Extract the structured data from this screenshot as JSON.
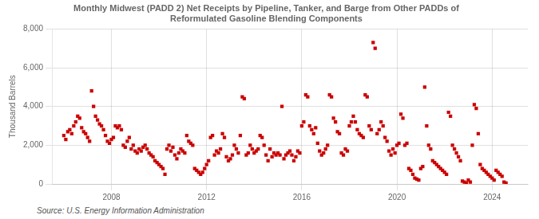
{
  "chart_data": {
    "type": "scatter",
    "title": "Monthly Midwest (PADD 2) Net Receipts by Pipeline, Tanker, and Barge from Other PADDs of\nReformulated Gasoline Blending Components",
    "ylabel": "Thousand Barrels",
    "annotations": [
      "Source: U.S. Energy Information Administration"
    ],
    "color": "#cc0000",
    "marker": "square",
    "grid": true,
    "xlim": [
      2005.5,
      2025.5
    ],
    "xticks": [
      2008,
      2012,
      2016,
      2020,
      2024
    ],
    "ylim": [
      0,
      8000
    ],
    "yticks": [
      0,
      {
        "value": 2000,
        "label": "2,000"
      },
      {
        "value": 4000,
        "label": "4,000"
      },
      {
        "value": 6000,
        "label": "6,000"
      },
      {
        "value": 8000,
        "label": "8,000"
      }
    ],
    "x": [
      2006.0,
      2006.083,
      2006.167,
      2006.25,
      2006.333,
      2006.417,
      2006.5,
      2006.583,
      2006.667,
      2006.75,
      2006.833,
      2006.917,
      2007.0,
      2007.083,
      2007.167,
      2007.25,
      2007.333,
      2007.417,
      2007.5,
      2007.583,
      2007.667,
      2007.75,
      2007.833,
      2007.917,
      2008.0,
      2008.083,
      2008.167,
      2008.25,
      2008.333,
      2008.417,
      2008.5,
      2008.583,
      2008.667,
      2008.75,
      2008.833,
      2008.917,
      2009.0,
      2009.083,
      2009.167,
      2009.25,
      2009.333,
      2009.417,
      2009.5,
      2009.583,
      2009.667,
      2009.75,
      2009.833,
      2009.917,
      2010.0,
      2010.083,
      2010.167,
      2010.25,
      2010.333,
      2010.417,
      2010.5,
      2010.583,
      2010.667,
      2010.75,
      2010.833,
      2010.917,
      2011.0,
      2011.083,
      2011.167,
      2011.25,
      2011.333,
      2011.417,
      2011.5,
      2011.583,
      2011.667,
      2011.75,
      2011.833,
      2011.917,
      2012.0,
      2012.083,
      2012.167,
      2012.25,
      2012.333,
      2012.417,
      2012.5,
      2012.583,
      2012.667,
      2012.75,
      2012.833,
      2012.917,
      2013.0,
      2013.083,
      2013.167,
      2013.25,
      2013.333,
      2013.417,
      2013.5,
      2013.583,
      2013.667,
      2013.75,
      2013.833,
      2013.917,
      2014.0,
      2014.083,
      2014.167,
      2014.25,
      2014.333,
      2014.417,
      2014.5,
      2014.583,
      2014.667,
      2014.75,
      2014.833,
      2014.917,
      2015.0,
      2015.083,
      2015.167,
      2015.25,
      2015.333,
      2015.417,
      2015.5,
      2015.583,
      2015.667,
      2015.75,
      2015.833,
      2015.917,
      2016.0,
      2016.083,
      2016.167,
      2016.25,
      2016.333,
      2016.417,
      2016.5,
      2016.583,
      2016.667,
      2016.75,
      2016.833,
      2016.917,
      2017.0,
      2017.083,
      2017.167,
      2017.25,
      2017.333,
      2017.417,
      2017.5,
      2017.583,
      2017.667,
      2017.75,
      2017.833,
      2017.917,
      2018.0,
      2018.083,
      2018.167,
      2018.25,
      2018.333,
      2018.417,
      2018.5,
      2018.583,
      2018.667,
      2018.75,
      2018.833,
      2018.917,
      2019.0,
      2019.083,
      2019.167,
      2019.25,
      2019.333,
      2019.417,
      2019.5,
      2019.583,
      2019.667,
      2019.75,
      2019.833,
      2019.917,
      2020.0,
      2020.083,
      2020.167,
      2020.25,
      2020.333,
      2020.417,
      2020.5,
      2020.583,
      2020.667,
      2020.75,
      2020.833,
      2020.917,
      2021.0,
      2021.083,
      2021.167,
      2021.25,
      2021.333,
      2021.417,
      2021.5,
      2021.583,
      2021.667,
      2021.75,
      2021.833,
      2021.917,
      2022.0,
      2022.083,
      2022.167,
      2022.25,
      2022.333,
      2022.417,
      2022.5,
      2022.583,
      2022.667,
      2022.75,
      2022.833,
      2022.917,
      2023.0,
      2023.083,
      2023.167,
      2023.25,
      2023.333,
      2023.417,
      2023.5,
      2023.583,
      2023.667,
      2023.75,
      2023.833,
      2023.917,
      2024.0,
      2024.083,
      2024.167,
      2024.25,
      2024.333,
      2024.417,
      2024.5,
      2024.583
    ],
    "values": [
      2500,
      2300,
      2700,
      2800,
      2600,
      3000,
      3200,
      3500,
      3400,
      2900,
      2700,
      2600,
      2400,
      2200,
      4800,
      4000,
      3500,
      3300,
      3100,
      3000,
      2800,
      2500,
      2200,
      2100,
      2300,
      2400,
      3000,
      2900,
      3000,
      2800,
      2000,
      1900,
      2200,
      2400,
      1800,
      2000,
      1700,
      1600,
      1800,
      1700,
      1900,
      2000,
      1800,
      1600,
      1500,
      1400,
      1200,
      1100,
      1000,
      900,
      800,
      500,
      1800,
      2000,
      1700,
      1900,
      1500,
      1300,
      1600,
      1800,
      1700,
      1600,
      2500,
      2200,
      2100,
      2000,
      800,
      700,
      600,
      500,
      600,
      800,
      1000,
      1200,
      2400,
      2500,
      1500,
      1700,
      1600,
      1800,
      2600,
      2400,
      1400,
      1200,
      1300,
      1500,
      2000,
      1800,
      1600,
      2500,
      4500,
      4400,
      1500,
      1600,
      2000,
      1800,
      1600,
      1700,
      1800,
      2500,
      2400,
      2000,
      1500,
      1200,
      1800,
      1400,
      1600,
      1500,
      1600,
      1500,
      4000,
      1300,
      1500,
      1600,
      1700,
      1500,
      1200,
      1400,
      1700,
      1600,
      3000,
      3200,
      4600,
      4500,
      3000,
      2800,
      2600,
      2900,
      2100,
      1700,
      1500,
      1600,
      1800,
      2000,
      4600,
      4500,
      3400,
      3200,
      2700,
      2600,
      1600,
      1500,
      1800,
      1700,
      3000,
      3200,
      3500,
      3200,
      2800,
      2600,
      2500,
      2400,
      4600,
      4500,
      3000,
      2800,
      7300,
      7000,
      2600,
      2800,
      3200,
      3000,
      2400,
      2200,
      1700,
      1500,
      1800,
      1600,
      2000,
      2100,
      3600,
      3400,
      2000,
      2100,
      800,
      700,
      500,
      300,
      250,
      200,
      800,
      900,
      5000,
      3000,
      2000,
      1800,
      1200,
      1100,
      1000,
      900,
      800,
      700,
      600,
      500,
      3700,
      3500,
      2000,
      1800,
      1600,
      1400,
      1200,
      150,
      100,
      50,
      200,
      100,
      2000,
      4100,
      3900,
      2600,
      1000,
      800,
      700,
      600,
      500,
      400,
      300,
      200,
      700,
      600,
      500,
      400,
      100,
      50
    ]
  }
}
